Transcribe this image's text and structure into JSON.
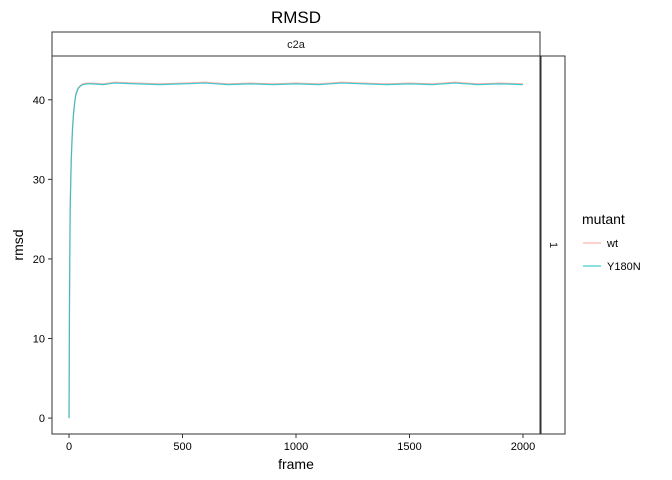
{
  "chart_data": {
    "type": "line",
    "title": "RMSD",
    "xlabel": "frame",
    "ylabel": "rmsd",
    "facet_column": "c2a",
    "facet_row": "1",
    "xlim": [
      -75,
      2075
    ],
    "ylim": [
      -2,
      45.5
    ],
    "x_ticks": [
      0,
      500,
      1000,
      1500,
      2000
    ],
    "y_ticks": [
      0,
      10,
      20,
      30,
      40
    ],
    "legend": {
      "title": "mutant",
      "position": "right"
    },
    "grid": false,
    "series": [
      {
        "name": "wt",
        "color": "#F8766D",
        "x": [
          0,
          2,
          5,
          10,
          15,
          20,
          25,
          30,
          40,
          50,
          60,
          80,
          100,
          150,
          200,
          300,
          400,
          500,
          600,
          700,
          800,
          900,
          1000,
          1100,
          1200,
          1300,
          1400,
          1500,
          1600,
          1700,
          1800,
          1900,
          2000
        ],
        "y": [
          0,
          15,
          27,
          33,
          36.5,
          38.5,
          39.8,
          40.8,
          41.5,
          41.8,
          42.0,
          42.1,
          42.1,
          42.0,
          42.2,
          42.1,
          42.0,
          42.1,
          42.2,
          42.0,
          42.1,
          42.0,
          42.1,
          42.0,
          42.2,
          42.1,
          42.0,
          42.1,
          42.0,
          42.2,
          42.0,
          42.1,
          42.0
        ]
      },
      {
        "name": "Y180N",
        "color": "#00BFC4",
        "x": [
          0,
          2,
          5,
          10,
          15,
          20,
          25,
          30,
          40,
          50,
          60,
          80,
          100,
          150,
          200,
          300,
          400,
          500,
          600,
          700,
          800,
          900,
          1000,
          1100,
          1200,
          1300,
          1400,
          1500,
          1600,
          1700,
          1800,
          1900,
          2000
        ],
        "y": [
          0,
          14,
          26,
          32.5,
          36,
          38.2,
          39.6,
          40.6,
          41.4,
          41.7,
          41.9,
          42.0,
          42.0,
          41.9,
          42.1,
          42.0,
          41.9,
          42.0,
          42.1,
          41.9,
          42.0,
          41.9,
          42.0,
          41.9,
          42.1,
          42.0,
          41.9,
          42.0,
          41.9,
          42.1,
          41.9,
          42.0,
          41.9
        ]
      }
    ]
  }
}
